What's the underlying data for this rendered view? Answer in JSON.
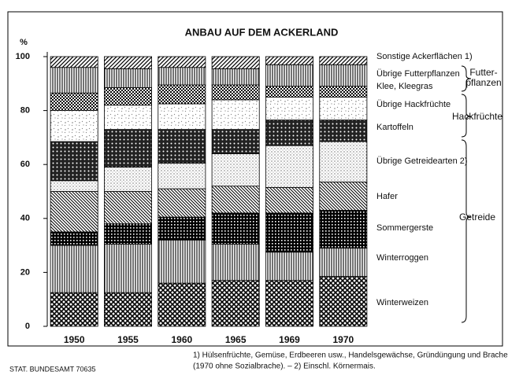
{
  "chart_data": {
    "type": "stacked_bar",
    "title": "ANBAU AUF DEM ACKERLAND",
    "y_label": "%",
    "categories": [
      "1950",
      "1955",
      "1960",
      "1965",
      "1969",
      "1970"
    ],
    "series": [
      {
        "name": "Winterweizen",
        "pattern": "diamond",
        "values": [
          12.5,
          12.5,
          16,
          17,
          17,
          18.5
        ]
      },
      {
        "name": "Winterroggen",
        "pattern": "vlines",
        "values": [
          17.5,
          18,
          16,
          13.5,
          10.5,
          10.5
        ]
      },
      {
        "name": "Sommergerste",
        "pattern": "densecross",
        "values": [
          5,
          7.5,
          8.5,
          11.5,
          14.5,
          14
        ]
      },
      {
        "name": "Hafer",
        "pattern": "backdiag",
        "values": [
          15,
          12,
          10.5,
          10,
          9.5,
          10.5
        ]
      },
      {
        "name": "Übrige Getreidearten 2)",
        "pattern": "dots",
        "values": [
          4,
          9,
          9.5,
          12,
          15.5,
          15
        ]
      },
      {
        "name": "Kartoffeln",
        "pattern": "darkdiamond",
        "values": [
          14.5,
          14,
          12.5,
          9,
          9.5,
          8
        ]
      },
      {
        "name": "Übrige Hackfrüchte",
        "pattern": "speckle",
        "values": [
          11.5,
          9,
          9.5,
          11,
          8.5,
          8.5
        ]
      },
      {
        "name": "Klee, Kleegras",
        "pattern": "checker",
        "values": [
          6.5,
          6.5,
          7,
          5.5,
          4,
          4
        ]
      },
      {
        "name": "Übrige Futterpflanzen",
        "pattern": "vlines",
        "values": [
          9.5,
          7,
          6.5,
          6,
          8,
          8
        ]
      },
      {
        "name": "Sonstige Ackerflächen 1)",
        "pattern": "fwddiag",
        "values": [
          4,
          4.5,
          4,
          4.5,
          3,
          3
        ]
      }
    ],
    "groups": [
      {
        "label": [
          "Futter-",
          "pflanzen"
        ]
      },
      {
        "label": [
          "Hackfrüchte"
        ]
      },
      {
        "label": [
          "Getreide"
        ]
      }
    ],
    "ylim": [
      0,
      100
    ],
    "yticks": [
      0,
      20,
      40,
      60,
      80,
      100
    ],
    "footnotes": [
      "1) Hülsenfrüchte, Gemüse, Erdbeeren usw., Handelsgewächse, Gründüngung und Brache",
      "(1970 ohne Sozialbrache). – 2) Einschl. Körnermais."
    ],
    "source": "STAT. BUNDESAMT 70635"
  }
}
